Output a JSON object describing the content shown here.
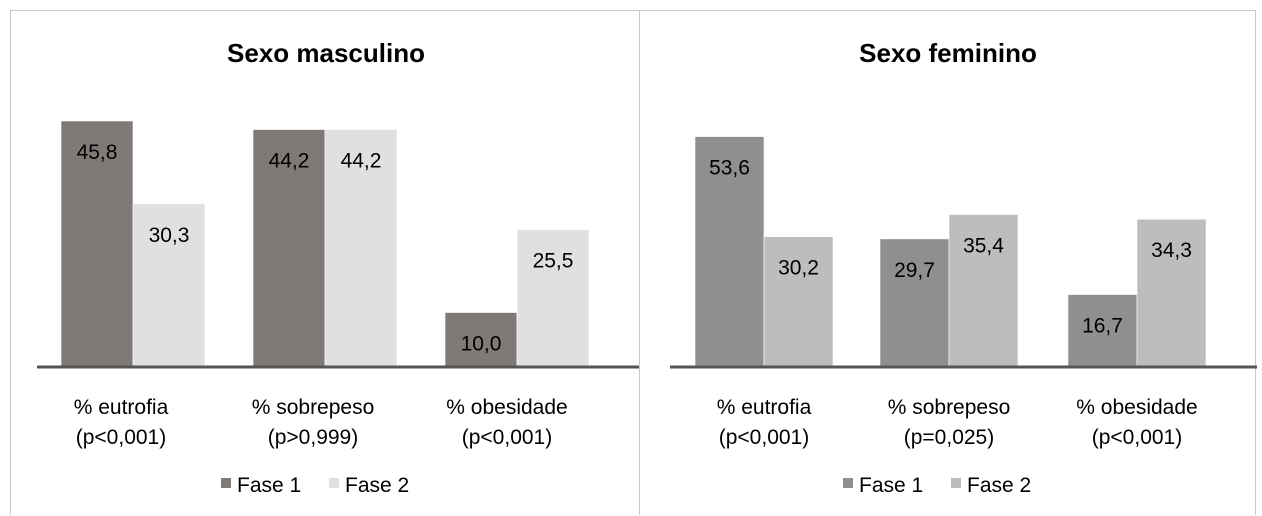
{
  "chart_data": [
    {
      "type": "bar",
      "title": "Sexo masculino",
      "categories": [
        [
          "% eutrofia",
          "(p<0,001)"
        ],
        [
          "% sobrepeso",
          "(p>0,999)"
        ],
        [
          "% obesidade",
          "(p<0,001)"
        ]
      ],
      "series": [
        {
          "name": "Fase 1",
          "values": [
            45.8,
            44.2,
            10.0
          ],
          "labels": [
            "45,8",
            "44,2",
            "10,0"
          ],
          "color": "#7f7a78"
        },
        {
          "name": "Fase 2",
          "values": [
            30.3,
            44.2,
            25.5
          ],
          "labels": [
            "30,3",
            "44,2",
            "25,5"
          ],
          "color": "#e0e0e0"
        }
      ],
      "legend": "bottom",
      "grid": false
    },
    {
      "type": "bar",
      "title": "Sexo feminino",
      "categories": [
        [
          "% eutrofia",
          "(p<0,001)"
        ],
        [
          "% sobrepeso",
          "(p=0,025)"
        ],
        [
          "% obesidade",
          "(p<0,001)"
        ]
      ],
      "series": [
        {
          "name": "Fase 1",
          "values": [
            53.6,
            29.7,
            16.7
          ],
          "labels": [
            "53,6",
            "29,7",
            "16,7"
          ],
          "color": "#8f8f8f"
        },
        {
          "name": "Fase 2",
          "values": [
            30.2,
            35.4,
            34.3
          ],
          "labels": [
            "30,2",
            "35,4",
            "34,3"
          ],
          "color": "#bdbdbd"
        }
      ],
      "legend": "bottom",
      "grid": false
    }
  ]
}
